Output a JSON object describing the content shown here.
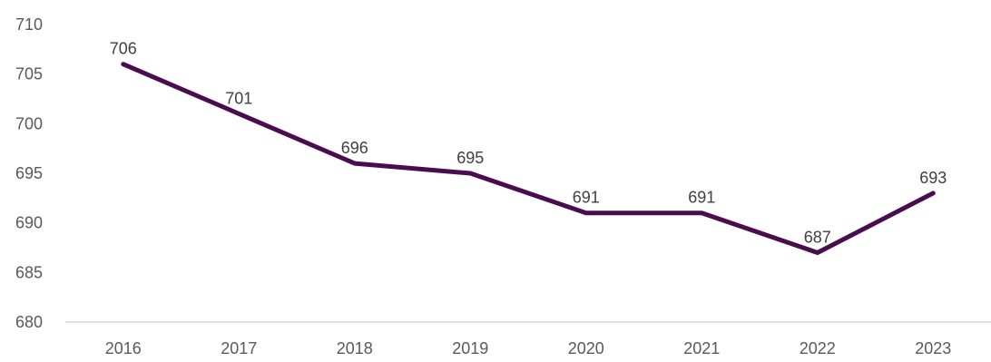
{
  "chart_data": {
    "type": "line",
    "title": "",
    "xlabel": "",
    "ylabel": "",
    "categories": [
      "2016",
      "2017",
      "2018",
      "2019",
      "2020",
      "2021",
      "2022",
      "2023"
    ],
    "series": [
      {
        "values": [
          706,
          701,
          696,
          695,
          691,
          691,
          687,
          693
        ],
        "color": "#4B0B4F"
      }
    ],
    "ylim": [
      680,
      710
    ],
    "yticks": [
      "680",
      "685",
      "690",
      "695",
      "700",
      "705",
      "710"
    ],
    "data_labels": [
      "706",
      "701",
      "696",
      "695",
      "691",
      "691",
      "687",
      "693"
    ],
    "grid": false,
    "legend": "none",
    "axis_color": "#D9D9D9"
  }
}
